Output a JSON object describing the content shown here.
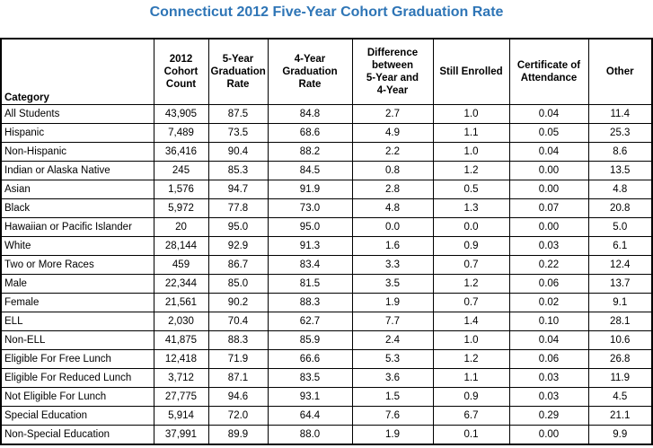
{
  "title": "Connecticut 2012 Five-Year Cohort Graduation Rate",
  "title_color": "#2E75B6",
  "chart_data": {
    "type": "table",
    "title": "Connecticut 2012 Five-Year Cohort Graduation Rate",
    "columns": [
      {
        "key": "category",
        "label": "Category"
      },
      {
        "key": "cohort-count",
        "label": "2012\nCohort\nCount"
      },
      {
        "key": "five-year-rate",
        "label": "5-Year\nGraduation\nRate"
      },
      {
        "key": "four-year-rate",
        "label": "4-Year\nGraduation\nRate"
      },
      {
        "key": "difference",
        "label": "Difference\nbetween\n5-Year and\n4-Year"
      },
      {
        "key": "still-enrolled",
        "label": "Still Enrolled"
      },
      {
        "key": "certificate-of-attendance",
        "label": "Certificate of\nAttendance"
      },
      {
        "key": "other",
        "label": "Other"
      }
    ],
    "rows": [
      [
        "All Students",
        "43,905",
        "87.5",
        "84.8",
        "2.7",
        "1.0",
        "0.04",
        "11.4"
      ],
      [
        "Hispanic",
        "7,489",
        "73.5",
        "68.6",
        "4.9",
        "1.1",
        "0.05",
        "25.3"
      ],
      [
        "Non-Hispanic",
        "36,416",
        "90.4",
        "88.2",
        "2.2",
        "1.0",
        "0.04",
        "8.6"
      ],
      [
        "Indian or Alaska Native",
        "245",
        "85.3",
        "84.5",
        "0.8",
        "1.2",
        "0.00",
        "13.5"
      ],
      [
        "Asian",
        "1,576",
        "94.7",
        "91.9",
        "2.8",
        "0.5",
        "0.00",
        "4.8"
      ],
      [
        "Black",
        "5,972",
        "77.8",
        "73.0",
        "4.8",
        "1.3",
        "0.07",
        "20.8"
      ],
      [
        "Hawaiian or Pacific Islander",
        "20",
        "95.0",
        "95.0",
        "0.0",
        "0.0",
        "0.00",
        "5.0"
      ],
      [
        "White",
        "28,144",
        "92.9",
        "91.3",
        "1.6",
        "0.9",
        "0.03",
        "6.1"
      ],
      [
        "Two or More Races",
        "459",
        "86.7",
        "83.4",
        "3.3",
        "0.7",
        "0.22",
        "12.4"
      ],
      [
        "Male",
        "22,344",
        "85.0",
        "81.5",
        "3.5",
        "1.2",
        "0.06",
        "13.7"
      ],
      [
        "Female",
        "21,561",
        "90.2",
        "88.3",
        "1.9",
        "0.7",
        "0.02",
        "9.1"
      ],
      [
        "ELL",
        "2,030",
        "70.4",
        "62.7",
        "7.7",
        "1.4",
        "0.10",
        "28.1"
      ],
      [
        "Non-ELL",
        "41,875",
        "88.3",
        "85.9",
        "2.4",
        "1.0",
        "0.04",
        "10.6"
      ],
      [
        "Eligible For Free Lunch",
        "12,418",
        "71.9",
        "66.6",
        "5.3",
        "1.2",
        "0.06",
        "26.8"
      ],
      [
        "Eligible For Reduced Lunch",
        "3,712",
        "87.1",
        "83.5",
        "3.6",
        "1.1",
        "0.03",
        "11.9"
      ],
      [
        "Not Eligible For Lunch",
        "27,775",
        "94.6",
        "93.1",
        "1.5",
        "0.9",
        "0.03",
        "4.5"
      ],
      [
        "Special Education",
        "5,914",
        "72.0",
        "64.4",
        "7.6",
        "6.7",
        "0.29",
        "21.1"
      ],
      [
        "Non-Special Education",
        "37,991",
        "89.9",
        "88.0",
        "1.9",
        "0.1",
        "0.00",
        "9.9"
      ]
    ]
  }
}
